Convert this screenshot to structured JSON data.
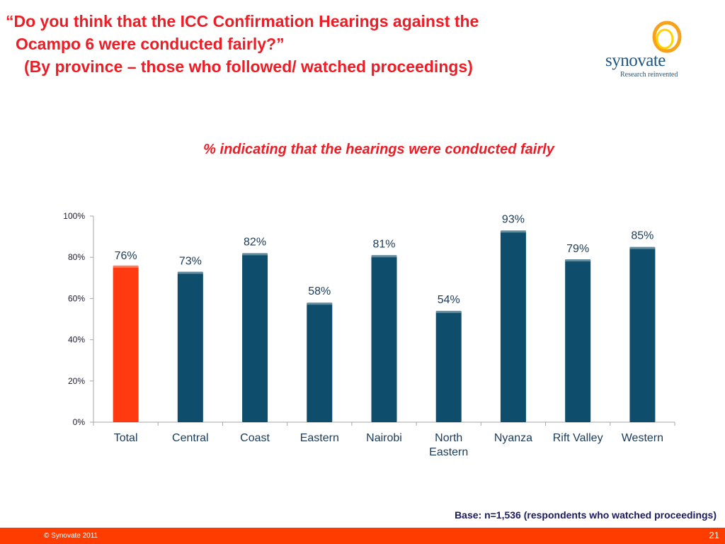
{
  "header": {
    "title_line1": "“Do you think that the ICC Confirmation Hearings against the",
    "title_line2": "Ocampo 6 were conducted fairly?”",
    "title_line3": "(By province – those who followed/ watched proceedings)"
  },
  "logo": {
    "name": "synovate",
    "tagline": "Research reinvented"
  },
  "chart_subtitle": "%  indicating that the hearings were conducted fairly",
  "chart_data": {
    "type": "bar",
    "categories": [
      "Total",
      "Central",
      "Coast",
      "Eastern",
      "Nairobi",
      "North Eastern",
      "Nyanza",
      "Rift Valley",
      "Western"
    ],
    "values": [
      76,
      73,
      82,
      58,
      81,
      54,
      93,
      79,
      85
    ],
    "value_labels": [
      "76%",
      "73%",
      "82%",
      "58%",
      "81%",
      "54%",
      "93%",
      "79%",
      "85%"
    ],
    "title": "%  indicating that the hearings were conducted fairly",
    "xlabel": "",
    "ylabel": "",
    "ylim": [
      0,
      100
    ],
    "yticks": [
      "0%",
      "20%",
      "40%",
      "60%",
      "80%",
      "100%"
    ],
    "grid": false,
    "legend": "none",
    "colors": {
      "highlight": "#ff3a10",
      "bar": "#0e4d6b"
    }
  },
  "base_note": "Base: n=1,536 (respondents who watched proceedings)",
  "footer": {
    "copyright": "© Synovate 2011",
    "page_number": "21"
  },
  "theme": {
    "title_color": "#ee1c25",
    "footer_color": "#ff3c00",
    "logo_ring_outer": "#f7a21b",
    "logo_ring_inner": "#ffd400"
  }
}
